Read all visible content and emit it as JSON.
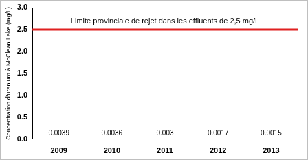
{
  "chart_data": {
    "type": "bar",
    "y_label": "Concentration d'uranium à McClean Lake (mg/L)",
    "categories": [
      "2009",
      "2010",
      "2011",
      "2012",
      "2013"
    ],
    "values": [
      0.0039,
      0.0036,
      0.003,
      0.0017,
      0.0015
    ],
    "color": "#1f3f8f",
    "data_labels": true,
    "ylim": [
      0,
      3
    ],
    "yticks": [
      {
        "value": 0,
        "label": "0.0"
      },
      0.5,
      {
        "value": 1,
        "label": "1.0"
      },
      1.5,
      {
        "value": 2,
        "label": "2.0"
      },
      2.5,
      {
        "value": 3,
        "label": "3.0"
      }
    ],
    "grid": false,
    "annotations": [
      {
        "text": "Limite provinciale de rejet dans les effluents de 2,5 mg/L",
        "y": 2.5,
        "color": "#e02020"
      }
    ]
  }
}
